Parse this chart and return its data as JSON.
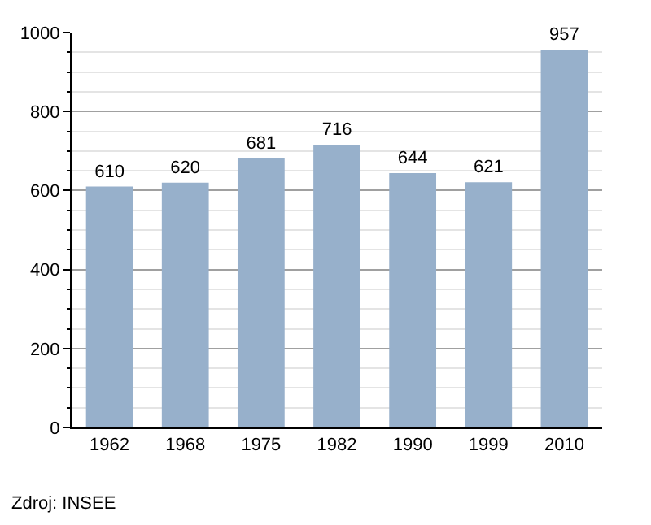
{
  "chart_data": {
    "type": "bar",
    "categories": [
      "1962",
      "1968",
      "1975",
      "1982",
      "1990",
      "1999",
      "2010"
    ],
    "values": [
      610,
      620,
      681,
      716,
      644,
      621,
      957
    ],
    "color": "#97b0cb",
    "ylim": [
      0,
      1000
    ],
    "yticks": [
      0,
      200,
      400,
      600,
      800,
      1000
    ],
    "grid": "y",
    "data_labels": true,
    "legend": false,
    "annotations": [
      "Zdroj: INSEE"
    ]
  }
}
